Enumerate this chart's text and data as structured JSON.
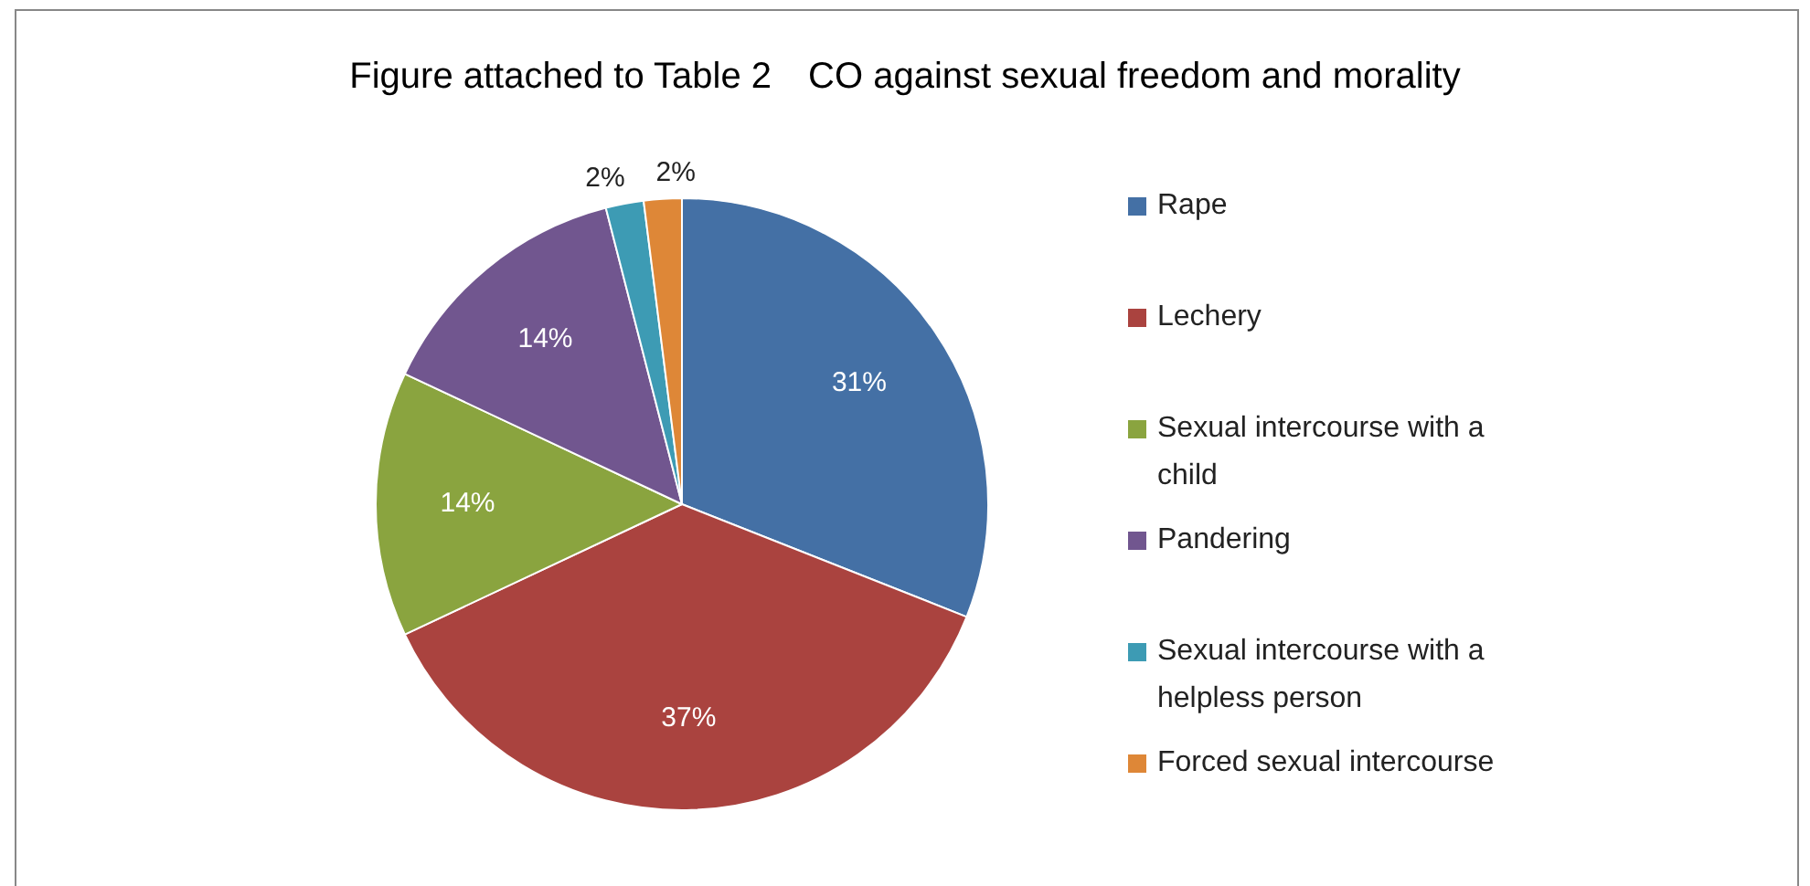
{
  "chart_data": {
    "type": "pie",
    "title": "Figure attached to Table 2　CO against sexual freedom and morality",
    "categories": [
      "Rape",
      "Lechery",
      "Sexual intercourse with a child",
      "Pandering",
      "Sexual intercourse with a helpless person",
      "Forced sexual intercourse"
    ],
    "values": [
      31,
      37,
      14,
      14,
      2,
      2
    ],
    "colors": [
      "#4470a5",
      "#aa433f",
      "#8aa43f",
      "#71568f",
      "#3d9bb4",
      "#de8737"
    ],
    "value_labels": [
      "31%",
      "37%",
      "14%",
      "14%",
      "2%",
      "2%"
    ],
    "legend": "right"
  }
}
